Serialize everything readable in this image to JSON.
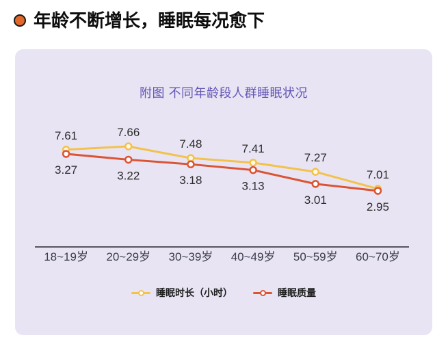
{
  "page": {
    "title": "年龄不断增长，睡眠每况愈下"
  },
  "chart_data": {
    "type": "line",
    "title": "附图 不同年龄段人群睡眠状况",
    "categories": [
      "18~19岁",
      "20~29岁",
      "30~39岁",
      "40~49岁",
      "50~59岁",
      "60~70岁"
    ],
    "series": [
      {
        "name": "睡眠时长（小时）",
        "values": [
          7.61,
          7.66,
          7.48,
          7.41,
          7.27,
          7.01
        ],
        "color": "#F3C24B",
        "marker_fill": "#FFF9E3",
        "label_position": "above",
        "axis_range": [
          7.0,
          7.7
        ]
      },
      {
        "name": "睡眠质量",
        "values": [
          3.27,
          3.22,
          3.18,
          3.13,
          3.01,
          2.95
        ],
        "color": "#DB5433",
        "marker_fill": "#FFFFFF",
        "label_position": "below",
        "axis_range": [
          2.9,
          3.3
        ]
      }
    ],
    "legend_position": "bottom",
    "grid": false,
    "dual_axis": true,
    "x_axis_line": true,
    "y_axis_shown": false,
    "data_labels_shown": true
  },
  "colors": {
    "title_bullet": "#E2672B",
    "title_text": "#0D0D0D",
    "panel_bg": "#E8E4F4",
    "chart_title": "#6456B4",
    "axis_line": "#56555F",
    "axis_label": "#3C3C4C",
    "data_label": "#2B2B2B",
    "legend_text": "#1E1E1E"
  }
}
